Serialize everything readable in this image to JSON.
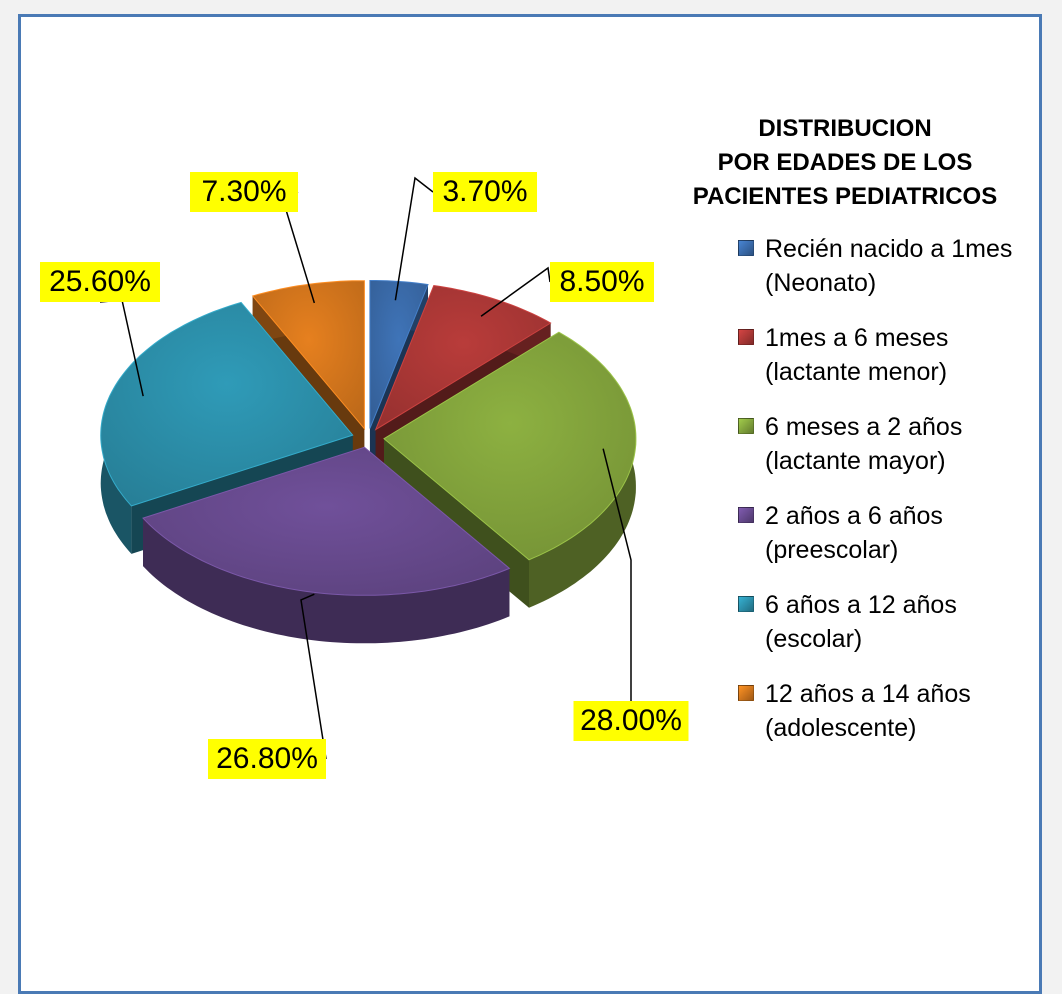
{
  "chart_data": {
    "type": "pie",
    "title": "DISTRIBUCION\nPOR EDADES DE LOS\nPACIENTES PEDIATRICOS",
    "categories": [
      "Recién nacido a 1mes\n(Neonato)",
      "1mes a 6 meses\n(lactante menor)",
      "6 meses a 2 años\n(lactante mayor)",
      "2 años a 6 años\n(preescolar)",
      "6 años a 12 años\n(escolar)",
      "12 años a 14 años\n(adolescente)"
    ],
    "values": [
      3.7,
      8.5,
      28.0,
      26.8,
      25.6,
      7.3
    ],
    "value_labels": [
      "3.70%",
      "8.50%",
      "28.00%",
      "26.80%",
      "25.60%",
      "7.30%"
    ],
    "colors": [
      "#3f74b8",
      "#b93c3a",
      "#8db141",
      "#70509a",
      "#2f9bb8",
      "#e6801f"
    ],
    "legend": "right"
  }
}
